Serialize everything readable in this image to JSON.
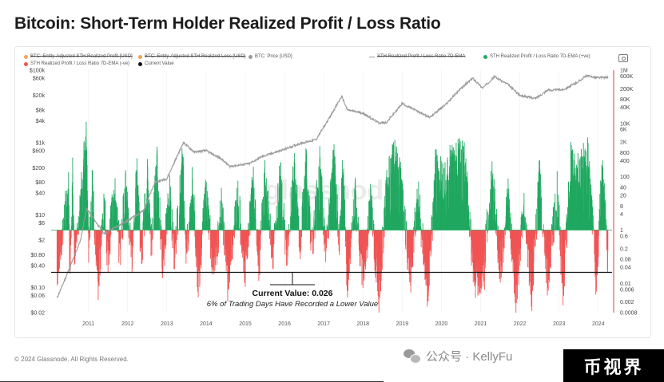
{
  "title": "Bitcoin: Short-Term Holder Realized Profit / Loss Ratio",
  "legend": [
    {
      "label": "BTC: Entity-Adjusted STH Realized Profit [USD]",
      "color": "#f4a259",
      "struck": true
    },
    {
      "label": "BTC: Entity-Adjusted STH Realized Loss [USD]",
      "color": "#f4a259",
      "struck": true
    },
    {
      "label": "BTC: Price [USD]",
      "color": "#9a9a9a",
      "struck": false
    },
    {
      "label": "STH Realized Profit / Loss Ratio 7D-EMA",
      "color": "#9a9a9a",
      "struck": true
    },
    {
      "label": "STH Realized Profit / Loss Ratio 7D-EMA (+ve)",
      "color": "#20a860",
      "struck": false
    },
    {
      "label": "STH Realized Profit / Loss Ratio 7D-EMA (-ve)",
      "color": "#f05454",
      "struck": false
    },
    {
      "label": "Current Value",
      "color": "#111111",
      "struck": false
    }
  ],
  "watermark": "glassnode",
  "footer": "© 2024 Glassnode. All Rights Reserved.",
  "wechat_text": "公众号 · KellyFu",
  "badge_text": "币视界",
  "chart_data": {
    "type": "line",
    "title": "Bitcoin: Short-Term Holder Realized Profit / Loss Ratio",
    "x_ticks": [
      "2011",
      "2012",
      "2013",
      "2014",
      "2015",
      "2016",
      "2017",
      "2018",
      "2019",
      "2020",
      "2021",
      "2022",
      "2023",
      "2024"
    ],
    "left_axis": {
      "label": "",
      "scale": "log",
      "ticks": [
        "$100k",
        "$60k",
        "$20k",
        "$8k",
        "$4k",
        "$1k",
        "$600",
        "$200",
        "$80",
        "$40",
        "$10",
        "$6",
        "$2",
        "$0.80",
        "$0.40",
        "$0.10",
        "$0.06",
        "$0.02"
      ]
    },
    "right_axis": {
      "label": "",
      "scale": "log",
      "ticks": [
        "1M",
        "600K",
        "200K",
        "80K",
        "40K",
        "10K",
        "6K",
        "2K",
        "800",
        "400",
        "100",
        "40",
        "20",
        "8",
        "4",
        "1",
        "0.6",
        "0.2",
        "0.08",
        "0.04",
        "0.01",
        "0.006",
        "0.002",
        "0.0008"
      ]
    },
    "price_series": {
      "name": "BTC: Price [USD]",
      "color": "#9a9a9a",
      "points": [
        [
          2010.7,
          0.05
        ],
        [
          2011.0,
          0.3
        ],
        [
          2011.3,
          2
        ],
        [
          2011.45,
          15
        ],
        [
          2011.9,
          3
        ],
        [
          2012.5,
          7
        ],
        [
          2012.9,
          13
        ],
        [
          2013.2,
          80
        ],
        [
          2013.5,
          100
        ],
        [
          2013.92,
          1000
        ],
        [
          2014.2,
          550
        ],
        [
          2014.5,
          600
        ],
        [
          2014.9,
          350
        ],
        [
          2015.1,
          220
        ],
        [
          2015.6,
          260
        ],
        [
          2015.9,
          400
        ],
        [
          2016.5,
          650
        ],
        [
          2016.9,
          950
        ],
        [
          2017.3,
          1200
        ],
        [
          2017.6,
          4000
        ],
        [
          2017.96,
          19000
        ],
        [
          2018.1,
          8000
        ],
        [
          2018.5,
          6500
        ],
        [
          2018.9,
          3500
        ],
        [
          2019.1,
          3600
        ],
        [
          2019.5,
          12000
        ],
        [
          2019.9,
          7200
        ],
        [
          2020.2,
          5000
        ],
        [
          2020.6,
          11000
        ],
        [
          2020.95,
          28000
        ],
        [
          2021.3,
          60000
        ],
        [
          2021.55,
          32000
        ],
        [
          2021.85,
          66000
        ],
        [
          2022.2,
          40000
        ],
        [
          2022.5,
          20000
        ],
        [
          2022.9,
          16500
        ],
        [
          2023.2,
          28000
        ],
        [
          2023.6,
          29000
        ],
        [
          2023.9,
          42000
        ],
        [
          2024.2,
          70000
        ],
        [
          2024.5,
          62000
        ],
        [
          2024.75,
          64000
        ]
      ]
    },
    "ratio_envelope": {
      "name": "STH Realized Profit / Loss Ratio 7D-EMA",
      "points": [
        [
          2010.7,
          0.03
        ],
        [
          2011.0,
          40
        ],
        [
          2011.02,
          0.02
        ],
        [
          2011.1,
          300
        ],
        [
          2011.15,
          0.05
        ],
        [
          2011.3,
          30
        ],
        [
          2011.45,
          2500
        ],
        [
          2011.5,
          0.2
        ],
        [
          2011.6,
          40
        ],
        [
          2011.75,
          0.01
        ],
        [
          2011.9,
          20
        ],
        [
          2012.0,
          0.05
        ],
        [
          2012.15,
          100
        ],
        [
          2012.3,
          0.1
        ],
        [
          2012.45,
          60
        ],
        [
          2012.6,
          0.08
        ],
        [
          2012.75,
          200
        ],
        [
          2012.85,
          0.06
        ],
        [
          2013.0,
          150
        ],
        [
          2013.1,
          0.3
        ],
        [
          2013.25,
          300
        ],
        [
          2013.4,
          0.02
        ],
        [
          2013.55,
          50
        ],
        [
          2013.7,
          0.1
        ],
        [
          2013.9,
          400
        ],
        [
          2014.0,
          0.1
        ],
        [
          2014.15,
          60
        ],
        [
          2014.3,
          0.01
        ],
        [
          2014.5,
          30
        ],
        [
          2014.7,
          0.02
        ],
        [
          2014.9,
          8
        ],
        [
          2015.05,
          0.01
        ],
        [
          2015.3,
          20
        ],
        [
          2015.5,
          0.04
        ],
        [
          2015.7,
          60
        ],
        [
          2015.85,
          0.05
        ],
        [
          2016.0,
          100
        ],
        [
          2016.2,
          0.08
        ],
        [
          2016.4,
          150
        ],
        [
          2016.55,
          0.1
        ],
        [
          2016.75,
          200
        ],
        [
          2016.9,
          0.3
        ],
        [
          2017.05,
          250
        ],
        [
          2017.2,
          0.2
        ],
        [
          2017.4,
          350
        ],
        [
          2017.55,
          0.1
        ],
        [
          2017.75,
          500
        ],
        [
          2017.9,
          0.5
        ],
        [
          2018.0,
          300
        ],
        [
          2018.1,
          0.005
        ],
        [
          2018.3,
          20
        ],
        [
          2018.5,
          0.01
        ],
        [
          2018.7,
          15
        ],
        [
          2018.9,
          0.002
        ],
        [
          2019.1,
          40
        ],
        [
          2019.3,
          500
        ],
        [
          2019.5,
          50
        ],
        [
          2019.7,
          0.01
        ],
        [
          2019.9,
          30
        ],
        [
          2020.15,
          0.003
        ],
        [
          2020.35,
          200
        ],
        [
          2020.55,
          80
        ],
        [
          2020.75,
          400
        ],
        [
          2020.95,
          600
        ],
        [
          2021.1,
          300
        ],
        [
          2021.35,
          0.01
        ],
        [
          2021.55,
          0.02
        ],
        [
          2021.8,
          150
        ],
        [
          2022.0,
          0.02
        ],
        [
          2022.2,
          20
        ],
        [
          2022.4,
          0.003
        ],
        [
          2022.6,
          10
        ],
        [
          2022.8,
          0.004
        ],
        [
          2023.0,
          100
        ],
        [
          2023.2,
          0.01
        ],
        [
          2023.45,
          30
        ],
        [
          2023.6,
          0.006
        ],
        [
          2023.8,
          400
        ],
        [
          2024.0,
          150
        ],
        [
          2024.25,
          700
        ],
        [
          2024.45,
          0.01
        ],
        [
          2024.6,
          300
        ],
        [
          2024.75,
          0.05
        ]
      ]
    },
    "threshold": 1,
    "current_value": 0.026,
    "annotation": {
      "label": "Current Value: 0.026",
      "sub": "6% of Trading Days Have Recorded a Lower Value"
    },
    "colors": {
      "positive": "#20a860",
      "negative": "#f05454",
      "price": "#9a9a9a",
      "current": "#111111",
      "axis_right": "#e03c3c"
    },
    "grid": true
  }
}
